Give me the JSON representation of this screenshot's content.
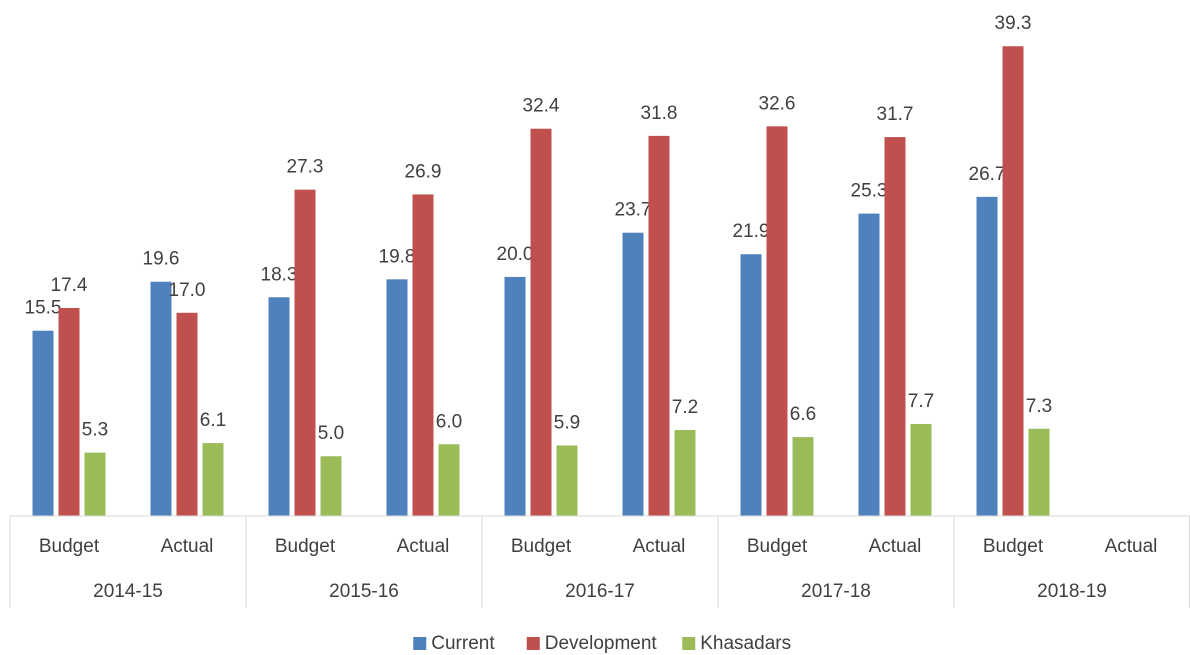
{
  "chart_data": {
    "type": "bar",
    "categories": [
      "Budget",
      "Actual",
      "Budget",
      "Actual",
      "Budget",
      "Actual",
      "Budget",
      "Actual",
      "Budget",
      "Actual"
    ],
    "groups": [
      "2014-15",
      "2015-16",
      "2016-17",
      "2017-18",
      "2018-19"
    ],
    "series": [
      {
        "name": "Current",
        "color": "#4f81bd",
        "values": [
          15.5,
          19.6,
          18.3,
          19.8,
          20.0,
          23.7,
          21.9,
          25.3,
          26.7,
          null
        ],
        "value_labels": [
          "15.5",
          "19.6",
          "18.3",
          "19.8",
          "20.0",
          "23.7",
          "21.9",
          "25.3",
          "26.7",
          null
        ]
      },
      {
        "name": "Development",
        "color": "#c0504d",
        "values": [
          17.4,
          17.0,
          27.3,
          26.9,
          32.4,
          31.8,
          32.6,
          31.7,
          39.3,
          null
        ],
        "value_labels": [
          "17.4",
          "17.0",
          "27.3",
          "26.9",
          "32.4",
          "31.8",
          "32.6",
          "31.7",
          "39.3",
          null
        ]
      },
      {
        "name": "Khasadars",
        "color": "#9bbb59",
        "values": [
          5.3,
          6.1,
          5.0,
          6.0,
          5.9,
          7.2,
          6.6,
          7.7,
          7.3,
          null
        ],
        "value_labels": [
          "5.3",
          "6.1",
          "5.0",
          "6.0",
          "5.9",
          "7.2",
          "6.6",
          "7.7",
          "7.3",
          null
        ]
      }
    ],
    "ylim": [
      0,
      43
    ],
    "legend": "bottom"
  }
}
